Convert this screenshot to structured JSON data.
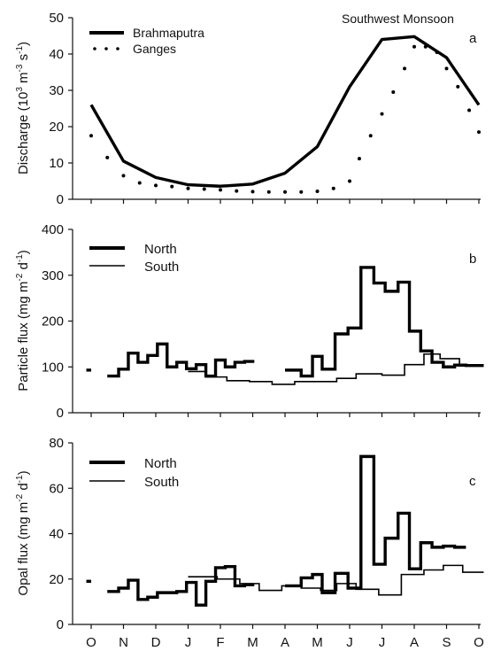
{
  "figure": {
    "months": [
      "O",
      "N",
      "D",
      "J",
      "F",
      "M",
      "A",
      "M",
      "J",
      "J",
      "A",
      "S",
      "O"
    ]
  },
  "chart_data": [
    {
      "type": "line",
      "panel": "a",
      "ylabel": "Discharge (10³ m⁻³ s⁻¹)",
      "ylabel_parts": {
        "base": "Discharge (10",
        "sup1": "3",
        "mid1": " m",
        "sup2": "-3",
        "mid2": " s",
        "sup3": "-1",
        "end": ")"
      },
      "annotation": "Southwest Monsoon",
      "ylim": [
        0,
        50
      ],
      "yticks": [
        0,
        10,
        20,
        30,
        40,
        50
      ],
      "xticks": [
        "O",
        "N",
        "D",
        "J",
        "F",
        "M",
        "A",
        "M",
        "J",
        "J",
        "A",
        "S",
        "O"
      ],
      "legend_position": "top-left",
      "series": [
        {
          "name": "Brahmaputra",
          "style": "solid-thick",
          "x": [
            0,
            1,
            2,
            3,
            4,
            5,
            6,
            7,
            8,
            9,
            10,
            11,
            12
          ],
          "y": [
            26,
            10.5,
            6,
            4,
            3.6,
            4.2,
            7.2,
            14.5,
            31,
            44,
            44.8,
            39,
            26
          ]
        },
        {
          "name": "Ganges",
          "style": "dotted",
          "x": [
            0,
            0.5,
            1,
            1.5,
            2,
            2.5,
            3,
            3.5,
            4,
            4.5,
            5,
            5.5,
            6,
            6.5,
            7,
            7.5,
            8,
            8.3,
            8.65,
            9,
            9.35,
            9.7,
            10,
            10.35,
            10.7,
            11,
            11.35,
            11.7,
            12
          ],
          "y": [
            17.5,
            11.5,
            6.5,
            4.5,
            3.8,
            3.5,
            3.0,
            2.8,
            2.6,
            2.3,
            2.1,
            2.0,
            2.0,
            2.0,
            2.2,
            3.0,
            5.0,
            11.2,
            17.5,
            23.5,
            29.5,
            36,
            42,
            42,
            40.5,
            36,
            31,
            24.5,
            18.5
          ]
        }
      ]
    },
    {
      "type": "step",
      "panel": "b",
      "ylabel": "Particle flux (mg m⁻² d⁻¹)",
      "ylabel_parts": {
        "base": "Particle flux (mg m",
        "sup1": "-2",
        "mid1": " d",
        "sup2": "-1",
        "end": ")"
      },
      "ylim": [
        0,
        400
      ],
      "yticks": [
        0,
        100,
        200,
        300,
        400
      ],
      "legend_position": "top-left",
      "series": [
        {
          "name": "North",
          "style": "solid-thick",
          "segments": [
            {
              "edges": [
                -0.15,
                0
              ],
              "values": [
                93
              ]
            },
            {
              "edges": [
                0.5,
                0.85,
                1.15,
                1.45,
                1.75,
                2.05,
                2.35,
                2.65,
                2.95,
                3.25,
                3.55,
                3.85,
                4.15,
                4.45,
                4.75,
                5.05
              ],
              "values": [
                80,
                95,
                130,
                110,
                125,
                150,
                100,
                110,
                96,
                105,
                80,
                115,
                100,
                110,
                112
              ]
            },
            {
              "edges": [
                6.0,
                6.5,
                6.85,
                7.15,
                7.55,
                7.95,
                8.35,
                8.75,
                9.1,
                9.5,
                9.85,
                10.2,
                10.55,
                10.9,
                11.25,
                11.6,
                12.15
              ],
              "values": [
                93,
                80,
                123,
                95,
                172,
                185,
                317,
                283,
                265,
                285,
                178,
                135,
                110,
                100,
                104,
                103
              ]
            }
          ]
        },
        {
          "name": "South",
          "style": "solid-thin",
          "segments": [
            {
              "edges": [
                3.0,
                3.55,
                4.2,
                4.9,
                5.6,
                6.3,
                6.9,
                7.6,
                8.2,
                9.0,
                9.7,
                10.3,
                10.8,
                11.4,
                12.15
              ],
              "values": [
                90,
                78,
                70,
                68,
                62,
                68,
                68,
                75,
                85,
                82,
                105,
                128,
                118,
                102
              ]
            }
          ]
        }
      ]
    },
    {
      "type": "step",
      "panel": "c",
      "ylabel": "Opal flux (mg m⁻² d⁻¹)",
      "ylabel_parts": {
        "base": "Opal flux (mg m",
        "sup1": "-2",
        "mid1": " d",
        "sup2": "-1",
        "end": ")"
      },
      "ylim": [
        0,
        80
      ],
      "yticks": [
        0,
        20,
        40,
        60,
        80
      ],
      "legend_position": "top-left",
      "series": [
        {
          "name": "North",
          "style": "solid-thick",
          "segments": [
            {
              "edges": [
                -0.15,
                0
              ],
              "values": [
                19
              ]
            },
            {
              "edges": [
                0.5,
                0.85,
                1.15,
                1.45,
                1.75,
                2.05,
                2.35,
                2.65,
                2.95,
                3.25,
                3.55,
                3.85,
                4.15,
                4.45,
                4.75,
                5.05
              ],
              "values": [
                14.5,
                16,
                19.5,
                11,
                12,
                14,
                14,
                14.5,
                18.5,
                8.5,
                19,
                25,
                25.5,
                17,
                17.5
              ]
            },
            {
              "edges": [
                6.0,
                6.5,
                6.85,
                7.15,
                7.55,
                7.95,
                8.35,
                8.75,
                9.1,
                9.5,
                9.85,
                10.2,
                10.55,
                10.9,
                11.25,
                11.6
              ],
              "values": [
                17,
                20.5,
                22,
                14,
                22.5,
                16,
                74,
                26.5,
                38,
                49,
                24.5,
                36,
                34,
                34.5,
                34
              ]
            }
          ]
        },
        {
          "name": "South",
          "style": "solid-thin",
          "segments": [
            {
              "edges": [
                3.0,
                3.9,
                4.6,
                5.2,
                5.9,
                6.5,
                7.1,
                7.6,
                8.2,
                8.9,
                9.6,
                10.3,
                10.9,
                11.5,
                12.15
              ],
              "values": [
                21,
                20,
                18,
                15,
                17,
                16,
                15,
                18,
                15.5,
                13,
                22,
                24,
                26,
                23
              ]
            }
          ]
        }
      ]
    }
  ]
}
